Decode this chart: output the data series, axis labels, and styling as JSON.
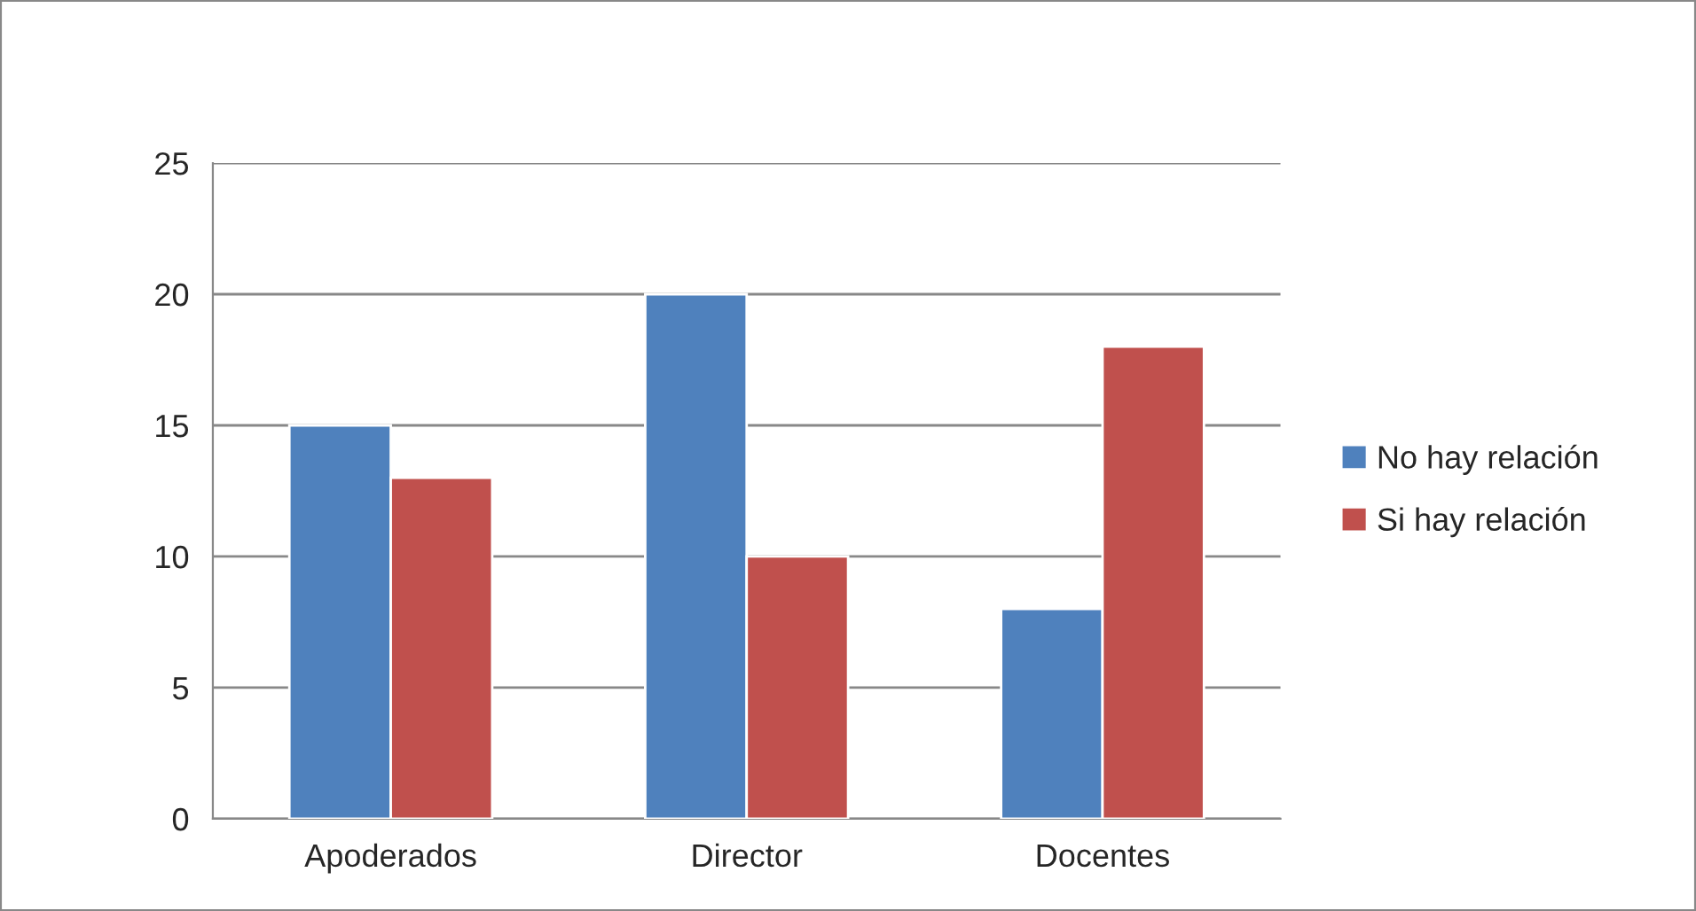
{
  "chart_data": {
    "type": "bar",
    "categories": [
      "Apoderados",
      "Director",
      "Docentes"
    ],
    "series": [
      {
        "name": "No hay relación",
        "color": "#4f81bd",
        "values": [
          15,
          20,
          8
        ]
      },
      {
        "name": "Si hay relación",
        "color": "#c0504d",
        "values": [
          13,
          10,
          18
        ]
      }
    ],
    "ylim": [
      0,
      25
    ],
    "yticks": [
      0,
      5,
      10,
      15,
      20,
      25
    ],
    "grid": "y",
    "legend": "right"
  }
}
